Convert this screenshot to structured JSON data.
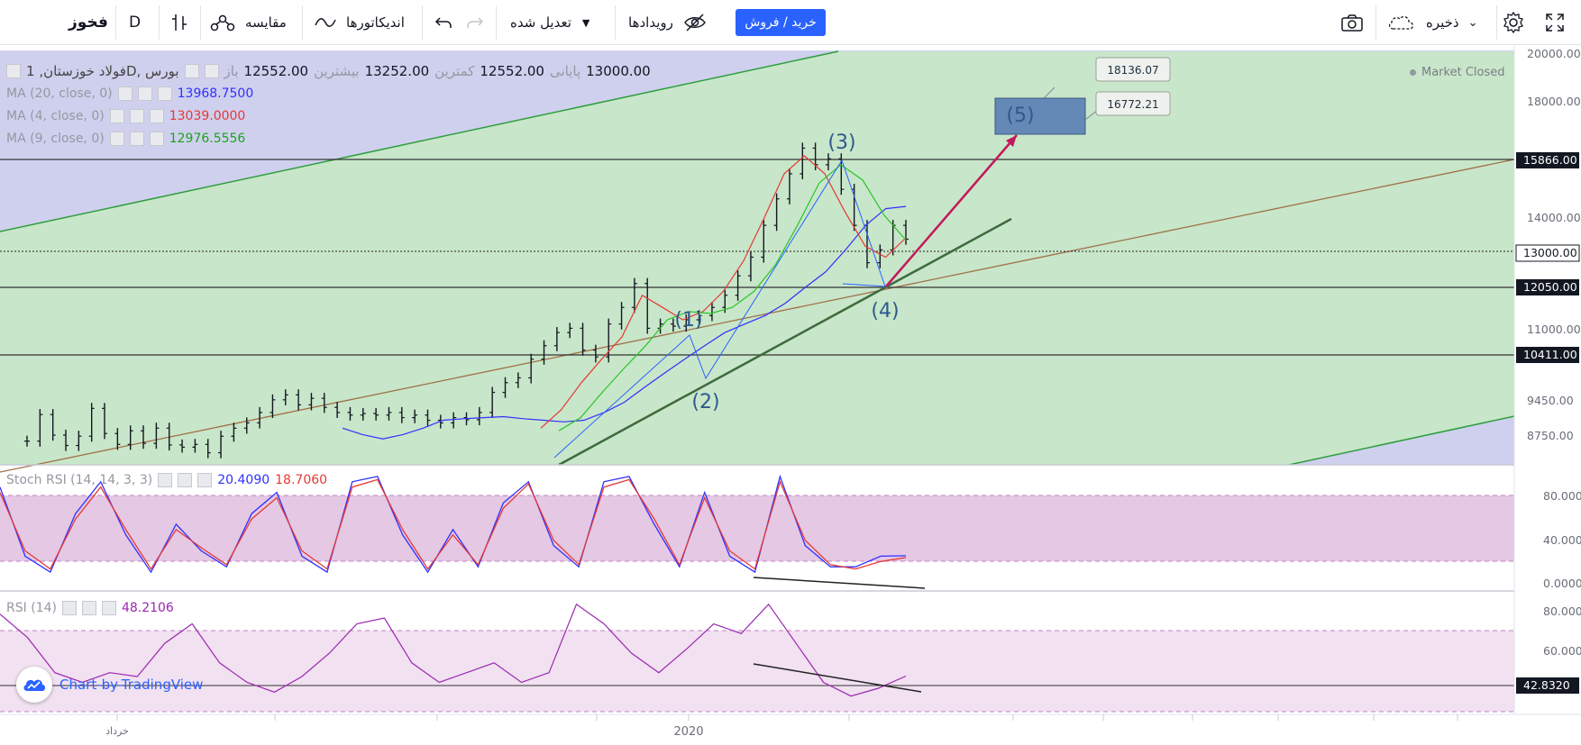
{
  "toolbar": {
    "symbol": "فخوز",
    "interval": "D",
    "compare_label": "مقایسه",
    "indicators_label": "اندیکاتورها",
    "adjusted_label": "تعدیل شده",
    "events_label": "رویدادها",
    "buy_sell_label": "خرید / فروش",
    "save_label": "ذخیره"
  },
  "legend": {
    "title": "فولاد خوزستان, 1D, بورس",
    "open_label": "باز",
    "open": "12552.00",
    "high_label": "بیشترین",
    "high": "13252.00",
    "low_label": "کمترین",
    "low": "12552.00",
    "close_label": "پایانی",
    "close": "13000.00",
    "market_status": "Market Closed",
    "ma20_label": "MA (20, close, 0)",
    "ma20_value": "13968.7500",
    "ma4_label": "MA (4, close, 0)",
    "ma4_value": "13039.0000",
    "ma9_label": "MA (9, close, 0)",
    "ma9_value": "12976.5556",
    "stoch_label": "Stoch RSI (14, 14, 3, 3)",
    "stoch_k": "20.4090",
    "stoch_d": "18.7060",
    "rsi_label": "RSI (14)",
    "rsi_value": "48.2106"
  },
  "colors": {
    "bull": "#26a69a",
    "accent": "#2962ff",
    "ma20": "#3030ff",
    "ma4": "#e53935",
    "ma9": "#27c627",
    "price_channel_fill": "#c8e6c9",
    "outer_fill": "#cfd0ee",
    "stoch_band": "#e4c8e4",
    "rsi_band": "#f1e1f1",
    "rsi_line": "#9c27b0",
    "arrow": "#c2185b"
  },
  "chart_data": [
    {
      "type": "line",
      "title": "فولاد خوزستان, 1D, بورس",
      "xlabel": "",
      "ylabel": "",
      "x_tick_labels": [
        "خرداد",
        "2020"
      ],
      "ylim": [
        8000,
        20000
      ],
      "y_ticks": [
        8750,
        9450,
        10411,
        11000,
        12050,
        13000,
        14000,
        15866,
        18000,
        20000
      ],
      "y_tick_labels": [
        "8750.00",
        "9450.00",
        "10411.00",
        "11000.00",
        "12050.00",
        "13000.00",
        "14000.00",
        "15866.00",
        "18000.00",
        "20000.00"
      ],
      "horizontal_levels": [
        10411,
        12050,
        13000,
        15866
      ],
      "series": [
        {
          "values": [
            8360,
            8860,
            8470,
            8280,
            8450,
            8980,
            8500,
            8300,
            8550,
            8320,
            8600,
            8290,
            8250,
            8300,
            8150,
            8450,
            8600,
            8700,
            8900,
            9150,
            9250,
            9050,
            9180,
            9000,
            8900,
            8850,
            8880,
            8850,
            8900,
            8800,
            8850,
            8750,
            8700,
            8800,
            8760,
            8900,
            9300,
            9500,
            9600,
            10000,
            10300,
            10600,
            10700,
            10200,
            10050,
            10800,
            11200,
            11800,
            10700,
            10800,
            10750,
            10900,
            11000,
            11200,
            11500,
            12000,
            12500,
            13400,
            14200,
            15000,
            15866,
            15300,
            15500,
            14500,
            13400,
            12350,
            12700,
            13400,
            13000
          ]
        },
        {
          "name": "MA (20, close, 0)",
          "values": [
            8600,
            8480,
            8400,
            8480,
            8600,
            8750,
            8780,
            8800,
            8820,
            8780,
            8750,
            8720,
            8750,
            8900,
            9100,
            9400,
            9700,
            10000,
            10300,
            10600,
            10800,
            11000,
            11300,
            11700,
            12100,
            12700,
            13400,
            13900,
            13968
          ]
        },
        {
          "name": "MA (4, close, 0)",
          "values": [
            8600,
            8950,
            9500,
            10000,
            10500,
            11500,
            11200,
            10900,
            11100,
            11600,
            12400,
            13600,
            15000,
            15600,
            15000,
            13800,
            12800,
            12500,
            13039
          ]
        },
        {
          "name": "MA (9, close, 0)",
          "values": [
            8550,
            8800,
            9300,
            9800,
            10300,
            10900,
            11100,
            11050,
            11200,
            11600,
            12300,
            13400,
            14700,
            15300,
            14800,
            13700,
            12976
          ]
        }
      ],
      "wave_labels": [
        "(1)",
        "(2)",
        "(3)",
        "(4)",
        "(5)"
      ],
      "target_box": [
        16772.21,
        18136.07
      ]
    },
    {
      "type": "line",
      "title": "Stoch RSI (14, 14, 3, 3)",
      "ylim": [
        0,
        100
      ],
      "y_tick_labels": [
        "80.0000",
        "40.0000",
        "0.0000"
      ],
      "band": [
        20,
        80
      ],
      "series": [
        {
          "name": "K",
          "values": [
            85,
            20,
            5,
            60,
            90,
            40,
            5,
            50,
            25,
            10,
            60,
            80,
            20,
            5,
            90,
            95,
            40,
            5,
            45,
            10,
            70,
            90,
            30,
            10,
            90,
            95,
            50,
            10,
            80,
            20,
            5,
            95,
            30,
            10,
            10,
            20,
            20.409
          ]
        },
        {
          "name": "D",
          "values": [
            80,
            25,
            8,
            55,
            85,
            45,
            8,
            45,
            28,
            12,
            55,
            75,
            25,
            8,
            85,
            92,
            45,
            8,
            40,
            12,
            65,
            88,
            35,
            12,
            85,
            92,
            55,
            12,
            75,
            25,
            8,
            90,
            35,
            12,
            8,
            15,
            18.706
          ]
        }
      ]
    },
    {
      "type": "line",
      "title": "RSI (14)",
      "ylim": [
        30,
        90
      ],
      "y_tick_labels": [
        "80.0000",
        "60.0000",
        "42.8320"
      ],
      "band": [
        30,
        70
      ],
      "series": [
        {
          "name": "RSI",
          "values": [
            80,
            68,
            50,
            45,
            50,
            48,
            65,
            75,
            55,
            45,
            40,
            48,
            60,
            75,
            78,
            55,
            45,
            50,
            55,
            45,
            50,
            85,
            75,
            60,
            50,
            62,
            75,
            70,
            85,
            65,
            45,
            38,
            42,
            48.2106
          ]
        }
      ]
    }
  ],
  "axis_labels": {
    "date1": "خرداد",
    "date2": "2020",
    "p20000": "20000.00",
    "p18000": "18000.00",
    "p15866": "15866.00",
    "p14000": "14000.00",
    "p13000": "13000.00",
    "p12050": "12050.00",
    "p11000": "11000.00",
    "p10411": "10411.00",
    "p9450": "9450.00",
    "p8750": "8750.00",
    "s80": "80.0000",
    "s40": "40.0000",
    "s0": "0.0000",
    "r80": "80.0000",
    "r60": "60.0000",
    "r42": "42.8320",
    "target_high": "18136.07",
    "target_low": "16772.21"
  },
  "brand": {
    "label": "Chart-by-TradingView"
  }
}
